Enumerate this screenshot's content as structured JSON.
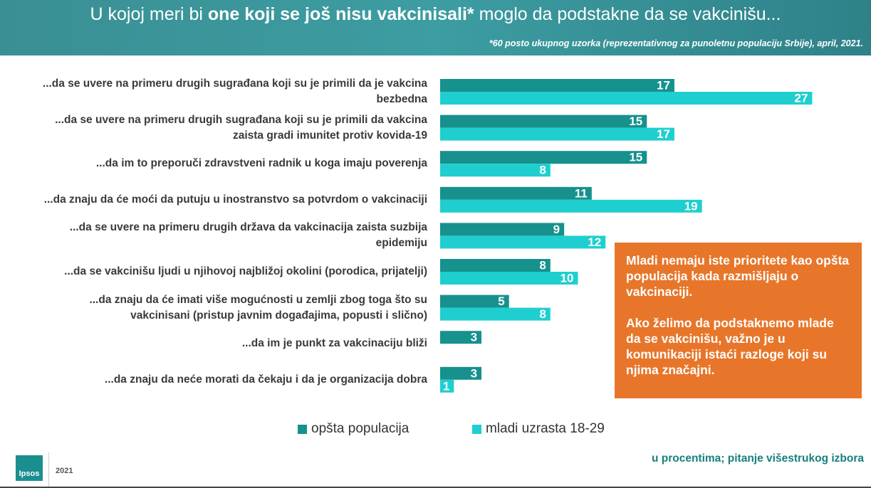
{
  "chart_data": {
    "type": "bar",
    "orientation": "horizontal",
    "title_parts": [
      "U kojoj meri bi ",
      "one koji se još nisu vakcinisali*",
      " moglo da podstakne da se vakcinišu..."
    ],
    "subtitle": "*60 posto ukupnog uzorka (reprezentativnog za punoletnu populaciju Srbije), april, 2021.",
    "categories": [
      "...da se uvere na primeru drugih sugrađana koji su je primili da je vakcina bezbedna",
      "...da se uvere na primeru drugih sugrađana koji su je primili da vakcina zaista gradi imunitet protiv kovida-19",
      "...da im to preporuči zdravstveni radnik u koga imaju poverenja",
      "...da znaju da će moći da putuju u inostranstvo sa potvrdom o vakcinaciji",
      "...da se uvere na primeru drugih država da vakcinacija zaista suzbija epidemiju",
      "...da se vakcinišu ljudi u njihovoj najbližoj okolini (porodica, prijatelji)",
      "...da znaju da će imati više mogućnosti u zemlji zbog toga što su vakcinisani (pristup javnim događajima, popusti i slično)",
      "...da im je punkt za vakcinaciju bliži",
      "...da znaju da neće morati da čekaju i da je organizacija dobra"
    ],
    "series": [
      {
        "name": "opšta populacija",
        "color": "#16918d",
        "values": [
          17,
          15,
          15,
          11,
          9,
          8,
          5,
          3,
          3
        ]
      },
      {
        "name": "mladi uzrasta 18-29",
        "color": "#1fcfcf",
        "values": [
          27,
          17,
          8,
          19,
          12,
          10,
          8,
          null,
          1
        ]
      }
    ],
    "callout": [
      "Mladi nemaju iste prioritete kao opšta populacija kada razmišljaju o vakcinaciji.",
      "Ako želimo da podstaknemo mlade da se vakcinišu, važno je u komunikaciji istaći razloge koji su njima značajni."
    ],
    "footnote": "u procentima; pitanje višestrukog izbora",
    "logo": "Ipsos",
    "year": "2021"
  }
}
